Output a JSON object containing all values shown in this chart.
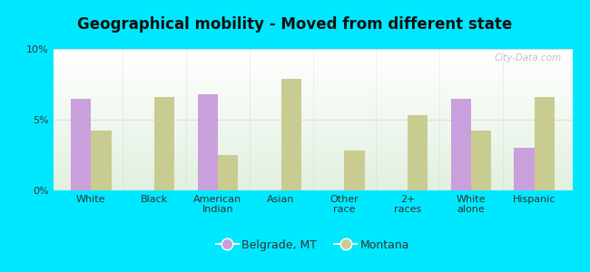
{
  "title": "Geographical mobility - Moved from different state",
  "categories": [
    "White",
    "Black",
    "American\nIndian",
    "Asian",
    "Other\nrace",
    "2+\nraces",
    "White\nalone",
    "Hispanic"
  ],
  "belgrade_values": [
    6.5,
    null,
    6.8,
    null,
    null,
    null,
    6.5,
    3.0
  ],
  "montana_values": [
    4.2,
    6.6,
    2.5,
    7.9,
    2.8,
    5.3,
    4.2,
    6.6
  ],
  "belgrade_color": "#c9a0dc",
  "montana_color": "#c8cc90",
  "background_outer": "#00e8ff",
  "ylim": [
    0,
    10
  ],
  "yticks": [
    0,
    5,
    10
  ],
  "ytick_labels": [
    "0%",
    "5%",
    "10%"
  ],
  "bar_width": 0.32,
  "legend_belgrade": "Belgrade, MT",
  "legend_montana": "Montana",
  "watermark": "City-Data.com",
  "title_fontsize": 12,
  "tick_fontsize": 8,
  "legend_fontsize": 9
}
